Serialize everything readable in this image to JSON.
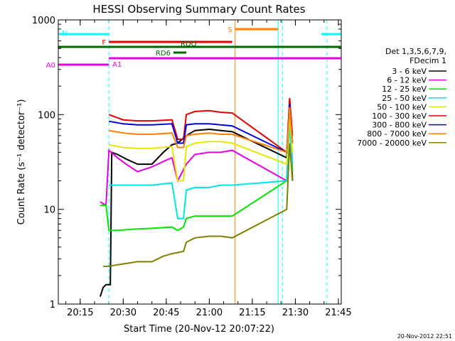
{
  "chart_data": {
    "type": "line",
    "title": "HESSI Observing Summary Count Rates",
    "xlabel": "Start Time (20-Nov-12 20:07:22)",
    "ylabel": "Count Rate (s⁻¹ detector⁻¹)",
    "y_scale": "log",
    "ylim": [
      1,
      1000
    ],
    "xlim": [
      "20:07:22",
      "21:46:00"
    ],
    "x_ticks": [
      "20:15",
      "20:30",
      "20:45",
      "21:00",
      "21:15",
      "21:30",
      "21:45"
    ],
    "y_ticks": [
      "1",
      "10",
      "100",
      "1000"
    ],
    "legend": {
      "header": [
        "Det 1,3,5,6,7,9,",
        "FDecim 1"
      ],
      "placement": "right",
      "entries": [
        {
          "label": "3 - 6 keV",
          "color": "#000000"
        },
        {
          "label": "6 - 12 keV",
          "color": "#e600e6"
        },
        {
          "label": "12 - 25 keV",
          "color": "#00e600"
        },
        {
          "label": "25 - 50 keV",
          "color": "#00e6e6"
        },
        {
          "label": "50 - 100 keV",
          "color": "#e6e600"
        },
        {
          "label": "100 - 300 keV",
          "color": "#e60000"
        },
        {
          "label": "300 - 800 keV",
          "color": "#0000e6"
        },
        {
          "label": "800 - 7000 keV",
          "color": "#ff8000"
        },
        {
          "label": "7000 - 20000 keV",
          "color": "#808000"
        }
      ]
    },
    "flag_bars": [
      {
        "label": "N",
        "color": "#00ffff",
        "segments": [
          [
            "20:07:22",
            "20:25:00"
          ],
          [
            "21:39:00",
            "21:46:00"
          ]
        ]
      },
      {
        "label": "F",
        "color": "#e60000",
        "segments": [
          [
            "20:25:00",
            "21:08:00"
          ]
        ]
      },
      {
        "label": "S",
        "color": "#ff8000",
        "segments": [
          [
            "21:09:00",
            "21:24:00"
          ]
        ]
      },
      {
        "label": "RD6",
        "color": "#006400",
        "segments": [
          [
            "20:47:30",
            "20:52:00"
          ]
        ]
      },
      {
        "label": "RDO",
        "color": "#006400",
        "segments": [
          [
            "20:07:22",
            "21:46:00"
          ]
        ]
      },
      {
        "label": "A0",
        "color": "#e600e6",
        "segments": [
          [
            "20:07:22",
            "20:25:00"
          ]
        ]
      },
      {
        "label": "A1",
        "color": "#e600e6",
        "segments": [
          [
            "20:25:00",
            "21:46:00"
          ]
        ]
      }
    ],
    "vertical_markers": [
      {
        "time": "20:25:00",
        "color": "#00ffff",
        "style": "dashed"
      },
      {
        "time": "21:09:00",
        "color": "#ff8000",
        "style": "solid"
      },
      {
        "time": "21:24:00",
        "color": "#00ffff",
        "style": "solid"
      },
      {
        "time": "21:25:30",
        "color": "#00ffff",
        "style": "dashed"
      },
      {
        "time": "21:41:00",
        "color": "#00ffff",
        "style": "dashed"
      }
    ],
    "series": [
      {
        "name": "3 - 6 keV",
        "color": "#000000",
        "points": [
          [
            "20:22:00",
            1.2
          ],
          [
            "20:23:00",
            1.5
          ],
          [
            "20:24:00",
            1.6
          ],
          [
            "20:25:30",
            1.6
          ],
          [
            "20:26:00",
            40
          ],
          [
            "20:28:00",
            38
          ],
          [
            "20:31:00",
            34
          ],
          [
            "20:35:00",
            30
          ],
          [
            "20:40:00",
            30
          ],
          [
            "20:44:00",
            40
          ],
          [
            "20:47:00",
            48
          ],
          [
            "20:49:00",
            50
          ],
          [
            "20:52:00",
            60
          ],
          [
            "20:55:00",
            68
          ],
          [
            "21:00:00",
            70
          ],
          [
            "21:04:00",
            68
          ],
          [
            "21:08:00",
            66
          ],
          [
            "21:27:00",
            35
          ],
          [
            "21:28:00",
            140
          ],
          [
            "21:29:00",
            20
          ]
        ]
      },
      {
        "name": "6 - 12 keV",
        "color": "#e600e6",
        "points": [
          [
            "20:22:00",
            12
          ],
          [
            "20:24:00",
            11
          ],
          [
            "20:25:00",
            42
          ],
          [
            "20:28:00",
            35
          ],
          [
            "20:31:00",
            30
          ],
          [
            "20:35:00",
            25
          ],
          [
            "20:40:00",
            28
          ],
          [
            "20:44:00",
            32
          ],
          [
            "20:47:00",
            35
          ],
          [
            "20:49:00",
            20
          ],
          [
            "20:52:00",
            30
          ],
          [
            "20:55:00",
            38
          ],
          [
            "21:00:00",
            40
          ],
          [
            "21:04:00",
            40
          ],
          [
            "21:08:00",
            42
          ],
          [
            "21:27:00",
            20
          ],
          [
            "21:28:00",
            120
          ],
          [
            "21:29:00",
            30
          ]
        ]
      },
      {
        "name": "12 - 25 keV",
        "color": "#00e600",
        "points": [
          [
            "20:22:00",
            11
          ],
          [
            "20:24:00",
            11
          ],
          [
            "20:25:00",
            6
          ],
          [
            "20:28:00",
            6
          ],
          [
            "20:35:00",
            6.2
          ],
          [
            "20:40:00",
            6.3
          ],
          [
            "20:47:00",
            6.5
          ],
          [
            "20:49:00",
            6
          ],
          [
            "20:51:00",
            6.5
          ],
          [
            "20:52:00",
            8
          ],
          [
            "20:55:00",
            8.5
          ],
          [
            "21:00:00",
            8.5
          ],
          [
            "21:04:00",
            8.5
          ],
          [
            "21:08:00",
            8.5
          ],
          [
            "21:27:00",
            20
          ],
          [
            "21:28:00",
            90
          ],
          [
            "21:29:00",
            25
          ]
        ]
      },
      {
        "name": "25 - 50 keV",
        "color": "#00e6e6",
        "points": [
          [
            "20:25:00",
            18
          ],
          [
            "20:35:00",
            18
          ],
          [
            "20:40:00",
            18
          ],
          [
            "20:47:00",
            19
          ],
          [
            "20:49:00",
            8
          ],
          [
            "20:51:00",
            8
          ],
          [
            "20:52:00",
            16
          ],
          [
            "20:55:00",
            17
          ],
          [
            "21:00:00",
            17
          ],
          [
            "21:04:00",
            18
          ],
          [
            "21:08:00",
            18
          ],
          [
            "21:27:00",
            20
          ],
          [
            "21:28:00",
            80
          ],
          [
            "21:29:00",
            30
          ]
        ]
      },
      {
        "name": "50 - 100 keV",
        "color": "#e6e600",
        "points": [
          [
            "20:25:00",
            48
          ],
          [
            "20:30:00",
            45
          ],
          [
            "20:35:00",
            44
          ],
          [
            "20:40:00",
            44
          ],
          [
            "20:47:00",
            46
          ],
          [
            "20:49:00",
            20
          ],
          [
            "20:51:00",
            20
          ],
          [
            "20:52:00",
            46
          ],
          [
            "20:55:00",
            50
          ],
          [
            "21:00:00",
            52
          ],
          [
            "21:04:00",
            52
          ],
          [
            "21:08:00",
            50
          ],
          [
            "21:27:00",
            30
          ],
          [
            "21:28:00",
            100
          ],
          [
            "21:29:00",
            40
          ]
        ]
      },
      {
        "name": "100 - 300 keV",
        "color": "#e60000",
        "points": [
          [
            "20:25:00",
            100
          ],
          [
            "20:30:00",
            88
          ],
          [
            "20:35:00",
            86
          ],
          [
            "20:40:00",
            86
          ],
          [
            "20:47:00",
            88
          ],
          [
            "20:49:00",
            55
          ],
          [
            "20:51:00",
            55
          ],
          [
            "20:52:00",
            100
          ],
          [
            "20:55:00",
            108
          ],
          [
            "21:00:00",
            110
          ],
          [
            "21:04:00",
            106
          ],
          [
            "21:08:00",
            104
          ],
          [
            "21:27:00",
            40
          ],
          [
            "21:28:00",
            150
          ],
          [
            "21:29:00",
            60
          ]
        ]
      },
      {
        "name": "300 - 800 keV",
        "color": "#0000e6",
        "points": [
          [
            "20:25:00",
            85
          ],
          [
            "20:30:00",
            80
          ],
          [
            "20:35:00",
            78
          ],
          [
            "20:40:00",
            78
          ],
          [
            "20:47:00",
            80
          ],
          [
            "20:49:00",
            50
          ],
          [
            "20:51:00",
            50
          ],
          [
            "20:52:00",
            78
          ],
          [
            "20:55:00",
            80
          ],
          [
            "21:00:00",
            80
          ],
          [
            "21:04:00",
            78
          ],
          [
            "21:08:00",
            76
          ],
          [
            "21:27:00",
            40
          ],
          [
            "21:28:00",
            130
          ],
          [
            "21:29:00",
            50
          ]
        ]
      },
      {
        "name": "800 - 7000 keV",
        "color": "#ff8000",
        "points": [
          [
            "20:25:00",
            68
          ],
          [
            "20:30:00",
            64
          ],
          [
            "20:35:00",
            62
          ],
          [
            "20:40:00",
            62
          ],
          [
            "20:47:00",
            64
          ],
          [
            "20:49:00",
            45
          ],
          [
            "20:51:00",
            45
          ],
          [
            "20:52:00",
            60
          ],
          [
            "20:55:00",
            62
          ],
          [
            "21:00:00",
            64
          ],
          [
            "21:04:00",
            62
          ],
          [
            "21:08:00",
            62
          ],
          [
            "21:27:00",
            40
          ],
          [
            "21:28:00",
            120
          ],
          [
            "21:29:00",
            50
          ]
        ]
      },
      {
        "name": "7000 - 20000 keV",
        "color": "#808000",
        "points": [
          [
            "20:23:00",
            2.5
          ],
          [
            "20:25:00",
            2.5
          ],
          [
            "20:28:00",
            2.6
          ],
          [
            "20:35:00",
            2.8
          ],
          [
            "20:40:00",
            2.8
          ],
          [
            "20:44:00",
            3.2
          ],
          [
            "20:47:00",
            3.4
          ],
          [
            "20:49:00",
            3.5
          ],
          [
            "20:51:00",
            3.6
          ],
          [
            "20:52:00",
            4.5
          ],
          [
            "20:55:00",
            5
          ],
          [
            "21:00:00",
            5.2
          ],
          [
            "21:04:00",
            5.2
          ],
          [
            "21:08:00",
            5
          ],
          [
            "21:27:00",
            10
          ],
          [
            "21:28:00",
            50
          ],
          [
            "21:29:00",
            20
          ]
        ]
      }
    ]
  },
  "footer": {
    "stamp": "20-Nov-2012 22:51"
  }
}
